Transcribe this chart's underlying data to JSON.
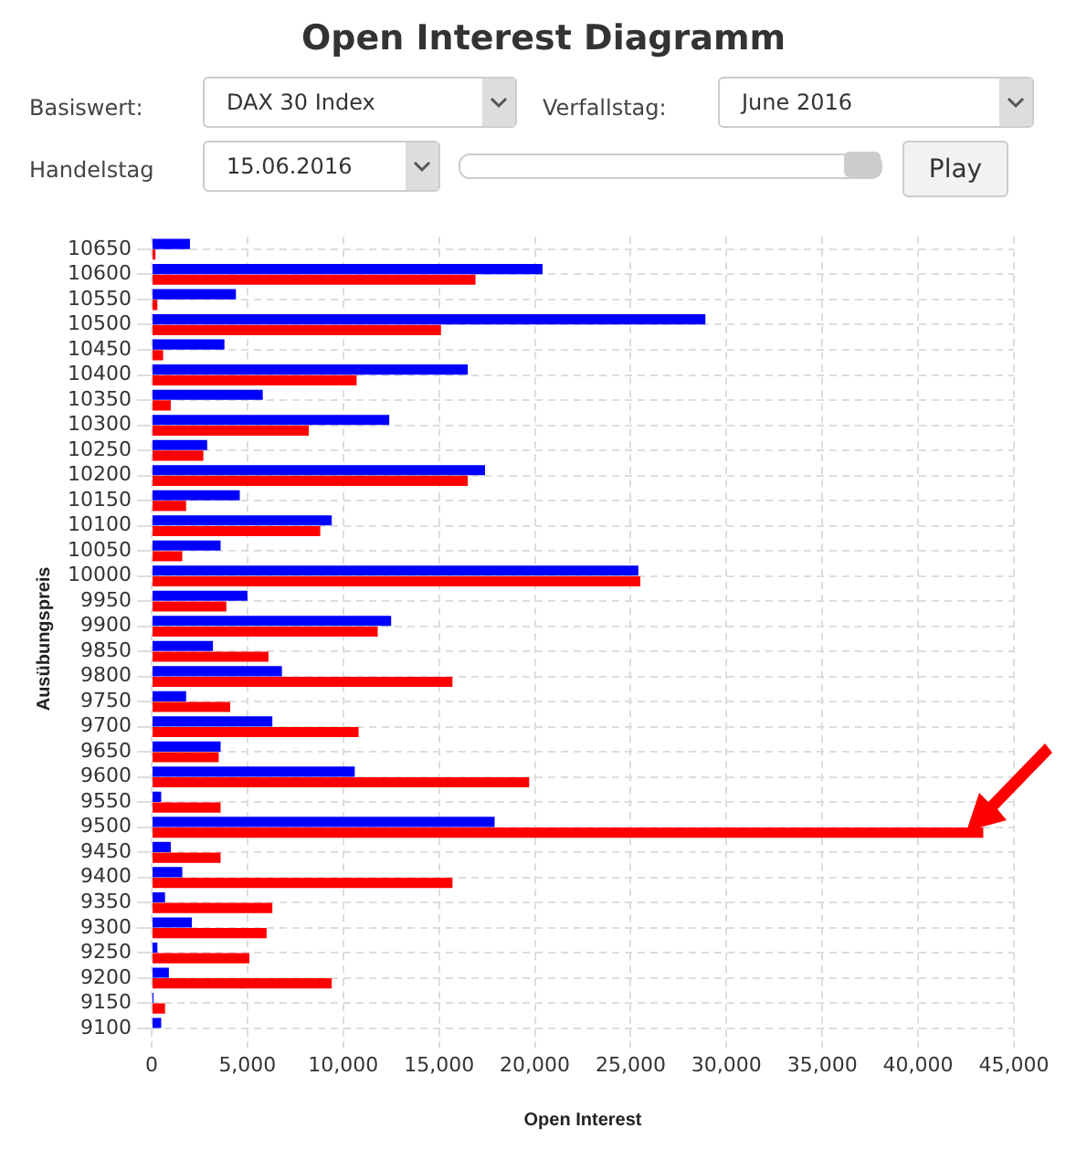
{
  "chart_data": {
    "type": "bar",
    "orientation": "horizontal",
    "title": "Open Interest Diagramm",
    "xlabel": "Open Interest",
    "ylabel": "Ausübungspreis",
    "annotations": [
      "Basiswert:",
      "DAX 30 Index",
      "Verfallstag:",
      "June 2016",
      "Handelstag",
      "15.06.2016",
      "Play"
    ],
    "categories": [
      "10650",
      "10600",
      "10550",
      "10500",
      "10450",
      "10400",
      "10350",
      "10300",
      "10250",
      "10200",
      "10150",
      "10100",
      "10050",
      "10000",
      "9950",
      "9900",
      "9850",
      "9800",
      "9750",
      "9700",
      "9650",
      "9600",
      "9550",
      "9500",
      "9450",
      "9400",
      "9350",
      "9300",
      "9250",
      "9200",
      "9150",
      "9100"
    ],
    "series": [
      {
        "color": "#0000ff",
        "values": [
          2000,
          20400,
          4400,
          28900,
          3800,
          16500,
          5800,
          12400,
          2900,
          17400,
          4600,
          9400,
          3600,
          25400,
          5000,
          12500,
          3200,
          6800,
          1800,
          6300,
          3600,
          10600,
          500,
          17900,
          1000,
          1600,
          700,
          2100,
          300,
          900,
          100,
          500
        ]
      },
      {
        "color": "#ff0000",
        "values": [
          200,
          16900,
          300,
          15100,
          600,
          10700,
          1000,
          8200,
          2700,
          16500,
          1800,
          8800,
          1600,
          25500,
          3900,
          11800,
          6100,
          15700,
          4100,
          10800,
          3500,
          19700,
          3600,
          43400,
          3600,
          15700,
          6300,
          6000,
          5100,
          9400,
          700,
          0
        ]
      }
    ],
    "xlim": [
      0,
      45000
    ],
    "xticks": [
      {
        "value": 0,
        "label": "0"
      },
      {
        "value": 5000,
        "label": "5,000"
      },
      {
        "value": 10000,
        "label": "10,000"
      },
      {
        "value": 15000,
        "label": "15,000"
      },
      {
        "value": 20000,
        "label": "20,000"
      },
      {
        "value": 25000,
        "label": "25,000"
      },
      {
        "value": 30000,
        "label": "30,000"
      },
      {
        "value": 35000,
        "label": "35,000"
      },
      {
        "value": 40000,
        "label": "40,000"
      },
      {
        "value": 45000,
        "label": "45,000"
      }
    ],
    "grid": true,
    "legend": false
  }
}
